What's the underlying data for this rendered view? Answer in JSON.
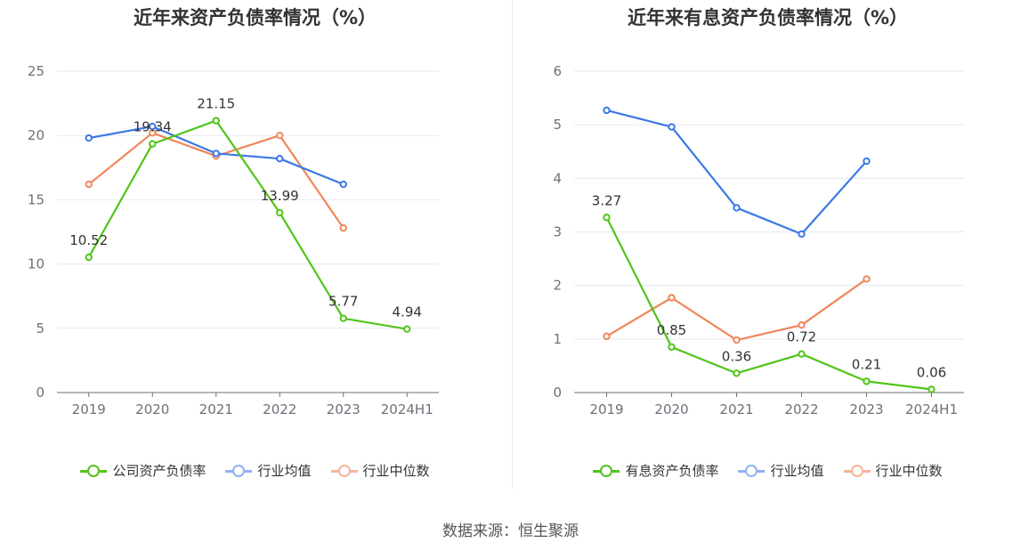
{
  "source": "数据来源：恒生聚源",
  "chart_data": [
    {
      "type": "line",
      "title": "近年来资产负债率情况（%）",
      "categories": [
        "2019",
        "2020",
        "2021",
        "2022",
        "2023",
        "2024H1"
      ],
      "ylim": [
        0,
        25
      ],
      "yticks": [
        "0",
        "5",
        "10",
        "15",
        "20",
        "25"
      ],
      "grid": true,
      "legend_position": "bottom-center",
      "series": [
        {
          "name": "公司资产负债率",
          "color": "#52c41a",
          "values": [
            10.52,
            19.34,
            21.15,
            13.99,
            5.77,
            4.94
          ],
          "labels": [
            "10.52",
            "19.34",
            "21.15",
            "13.99",
            "5.77",
            "4.94"
          ]
        },
        {
          "name": "行业均值",
          "color": "#3b78e7",
          "values": [
            19.8,
            20.7,
            18.6,
            18.2,
            16.2,
            null
          ]
        },
        {
          "name": "行业中位数",
          "color": "#f0875a",
          "values": [
            16.2,
            20.2,
            18.4,
            20.0,
            12.8,
            null
          ]
        }
      ]
    },
    {
      "type": "line",
      "title": "近年来有息资产负债率情况（%）",
      "categories": [
        "2019",
        "2020",
        "2021",
        "2022",
        "2023",
        "2024H1"
      ],
      "ylim": [
        0,
        6
      ],
      "yticks": [
        "0",
        "1",
        "2",
        "3",
        "4",
        "5",
        "6"
      ],
      "grid": true,
      "legend_position": "bottom-center",
      "series": [
        {
          "name": "有息资产负债率",
          "color": "#52c41a",
          "values": [
            3.27,
            0.85,
            0.36,
            0.72,
            0.21,
            0.06
          ],
          "labels": [
            "3.27",
            "0.85",
            "0.36",
            "0.72",
            "0.21",
            "0.06"
          ]
        },
        {
          "name": "行业均值",
          "color": "#3b78e7",
          "values": [
            5.27,
            4.96,
            3.45,
            2.96,
            4.32,
            null
          ]
        },
        {
          "name": "行业中位数",
          "color": "#f0875a",
          "values": [
            1.05,
            1.77,
            0.98,
            1.26,
            2.12,
            null
          ]
        }
      ]
    }
  ]
}
